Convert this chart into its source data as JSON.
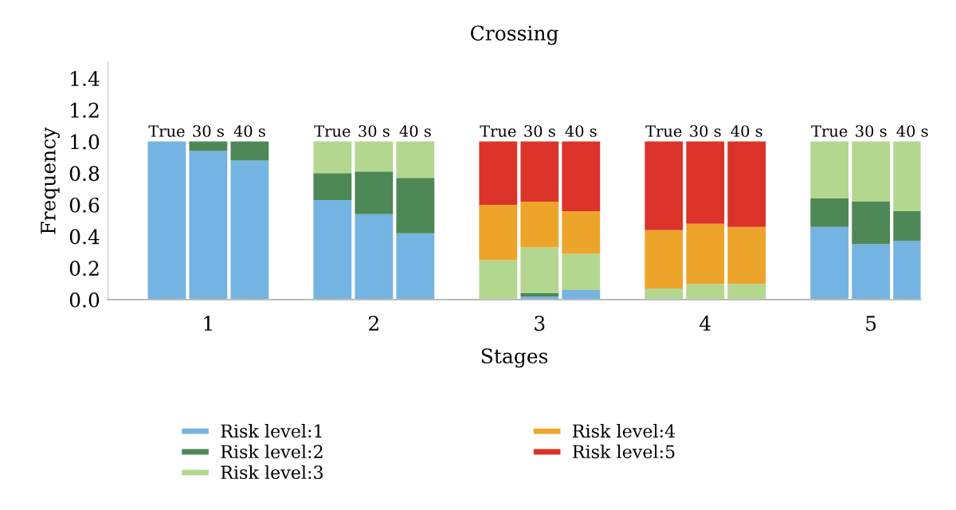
{
  "chart_data": {
    "type": "bar",
    "title": "Crossing",
    "xlabel": "Stages",
    "ylabel": "Frequency",
    "categories": [
      "True",
      "30 s",
      "40 s",
      null,
      "True",
      "30 s",
      "40 s",
      null,
      "True",
      "30 s",
      "40 s",
      null,
      "True",
      "30 s",
      "40 s",
      null,
      "True",
      "30 s",
      "40 s"
    ],
    "stacked": true,
    "series": [
      {
        "name": "Risk level:1",
        "color": "#74b4e2",
        "values": [
          1.0,
          0.94,
          0.88,
          null,
          0.63,
          0.54,
          0.42,
          null,
          0,
          0.02,
          0.06,
          null,
          0,
          0,
          0,
          null,
          0.46,
          0.35,
          0.37
        ]
      },
      {
        "name": "Risk level:2",
        "color": "#4e8856",
        "values": [
          0,
          0.06,
          0.12,
          null,
          0.17,
          0.27,
          0.35,
          null,
          0,
          0.02,
          0,
          null,
          0,
          0,
          0,
          null,
          0.18,
          0.27,
          0.19
        ]
      },
      {
        "name": "Risk level:3",
        "color": "#b3d78f",
        "values": [
          0,
          0,
          0,
          null,
          0.2,
          0.19,
          0.23,
          null,
          0.25,
          0.29,
          0.23,
          null,
          0.07,
          0.1,
          0.1,
          null,
          0.36,
          0.38,
          0.44
        ]
      },
      {
        "name": "Risk level:4",
        "color": "#eca42a",
        "values": [
          0,
          0,
          0,
          null,
          0,
          0,
          0,
          null,
          0.35,
          0.29,
          0.27,
          null,
          0.37,
          0.38,
          0.36,
          null,
          0,
          0,
          0
        ]
      },
      {
        "name": "Risk level:5",
        "color": "#db3329",
        "values": [
          0,
          0,
          0,
          null,
          0,
          0,
          0,
          null,
          0.4,
          0.38,
          0.44,
          null,
          0.56,
          0.52,
          0.54,
          null,
          0,
          0,
          0
        ]
      }
    ],
    "annotations": [
      "1",
      "2",
      "3",
      "4",
      "5"
    ],
    "ylim": [
      0,
      1.5
    ],
    "yticks": [
      {
        "value": 0,
        "label": "0.0"
      },
      {
        "value": 0.2,
        "label": "0.2"
      },
      {
        "value": 0.4,
        "label": "0.4"
      },
      {
        "value": 0.6,
        "label": "0.6"
      },
      {
        "value": 0.8,
        "label": "0.8"
      },
      {
        "value": 1.0,
        "label": "1.0"
      },
      {
        "value": 1.2,
        "label": "1.2"
      },
      {
        "value": 1.4,
        "label": "1.4"
      }
    ],
    "grid": false,
    "legend": "bottom"
  }
}
